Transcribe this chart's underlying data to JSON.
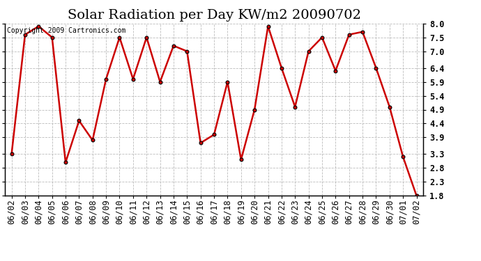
{
  "title": "Solar Radiation per Day KW/m2 20090702",
  "copyright": "Copyright 2009 Cartronics.com",
  "dates": [
    "06/02",
    "06/03",
    "06/04",
    "06/05",
    "06/06",
    "06/07",
    "06/08",
    "06/09",
    "06/10",
    "06/11",
    "06/12",
    "06/13",
    "06/14",
    "06/15",
    "06/16",
    "06/17",
    "06/18",
    "06/19",
    "06/20",
    "06/21",
    "06/22",
    "06/23",
    "06/24",
    "06/25",
    "06/26",
    "06/27",
    "06/28",
    "06/29",
    "06/30",
    "07/01",
    "07/02"
  ],
  "values": [
    3.3,
    7.6,
    7.9,
    7.5,
    3.0,
    4.5,
    3.8,
    6.0,
    7.5,
    6.0,
    7.5,
    5.9,
    7.2,
    7.0,
    3.7,
    4.0,
    5.9,
    3.1,
    4.9,
    7.9,
    6.4,
    5.0,
    7.0,
    7.5,
    6.3,
    7.6,
    7.7,
    6.4,
    5.0,
    3.2,
    1.8
  ],
  "line_color": "#cc0000",
  "marker_facecolor": "#cc0000",
  "marker_edgecolor": "#000000",
  "bg_color": "#ffffff",
  "grid_color": "#bbbbbb",
  "ylim_min": 1.8,
  "ylim_max": 8.0,
  "yticks": [
    1.8,
    2.3,
    2.8,
    3.3,
    3.9,
    4.4,
    4.9,
    5.4,
    5.9,
    6.4,
    7.0,
    7.5,
    8.0
  ],
  "title_fontsize": 14,
  "tick_fontsize": 8.5,
  "copyright_fontsize": 7
}
